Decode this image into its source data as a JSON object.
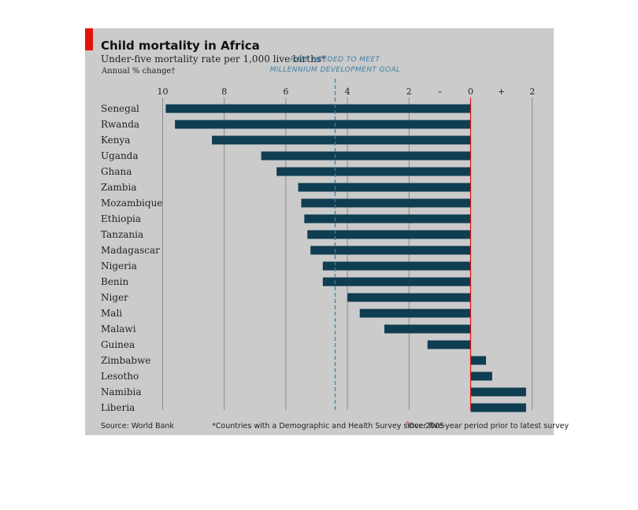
{
  "chart_data": {
    "type": "bar",
    "orientation": "horizontal",
    "title": "Child mortality in Africa",
    "subtitle": "Under-five mortality rate per 1,000 live births*",
    "xlabel": "Annual % change†",
    "xlim": [
      -10.5,
      2
    ],
    "ticks": [
      {
        "value": -10,
        "label": "10"
      },
      {
        "value": -8,
        "label": "8"
      },
      {
        "value": -6,
        "label": "6"
      },
      {
        "value": -4,
        "label": "4"
      },
      {
        "value": -2,
        "label": "2"
      },
      {
        "value": 0,
        "label": "0"
      },
      {
        "value": 1,
        "label": "+"
      },
      {
        "value": 2,
        "label": "2"
      }
    ],
    "minus_sign": "–",
    "categories": [
      "Senegal",
      "Rwanda",
      "Kenya",
      "Uganda",
      "Ghana",
      "Zambia",
      "Mozambique",
      "Ethiopia",
      "Tanzania",
      "Madagascar",
      "Nigeria",
      "Benin",
      "Niger",
      "Mali",
      "Malawi",
      "Guinea",
      "Zimbabwe",
      "Lesotho",
      "Namibia",
      "Liberia"
    ],
    "values": [
      -9.9,
      -9.6,
      -8.4,
      -6.8,
      -6.3,
      -5.6,
      -5.5,
      -5.4,
      -5.3,
      -5.2,
      -4.8,
      -4.8,
      -4.0,
      -3.6,
      -2.8,
      -1.4,
      0.5,
      0.7,
      1.8,
      1.8
    ],
    "reference_line": {
      "value": -4.4,
      "label_line1": "RATE NEEDED TO MEET",
      "label_line2": "MILLENNIUM DEVELOPMENT GOAL"
    },
    "colors": {
      "bar": "#0f3d52",
      "reference": "#3e7ea6",
      "zero": "#e3120b",
      "grid": "#8a8a8a",
      "footnote_dagger": "#e3120b"
    }
  },
  "footer": {
    "source": "Source: World Bank",
    "note1": "*Countries with a Demographic and Health Survey since 2005",
    "note2_mark": "†",
    "note2": "Over five-year period prior to latest survey"
  }
}
